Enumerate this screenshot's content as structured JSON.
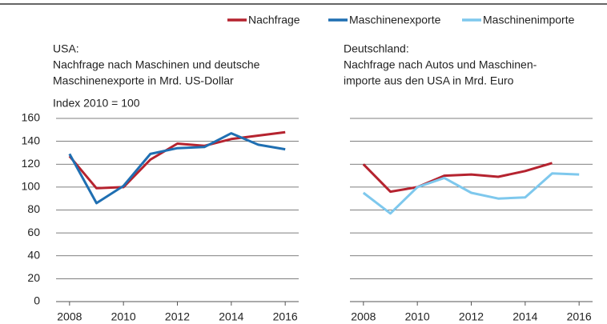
{
  "chart_data": [
    {
      "type": "line",
      "title": [
        "USA:",
        "Nachfrage nach Maschinen und deutsche",
        "Maschinenexporte in Mrd. US-Dollar"
      ],
      "y_label": "Index 2010 = 100",
      "x": [
        2008,
        2009,
        2010,
        2011,
        2012,
        2013,
        2014,
        2015,
        2016
      ],
      "series": [
        {
          "name": "Nachfrage",
          "color": "#b5232f",
          "values": [
            127,
            99,
            100,
            124,
            138,
            136,
            142,
            145,
            148
          ]
        },
        {
          "name": "Maschinenexporte",
          "color": "#1f6fb2",
          "values": [
            129,
            86,
            101,
            129,
            134,
            135,
            147,
            137,
            133
          ]
        }
      ],
      "xlim": [
        2007.5,
        2016.5
      ],
      "xticks": [
        2008,
        2010,
        2012,
        2014,
        2016
      ],
      "ylim": [
        0,
        160
      ],
      "yticks": [
        0,
        20,
        40,
        60,
        80,
        100,
        120,
        140,
        160
      ],
      "show_ytick_labels": true,
      "grid": true
    },
    {
      "type": "line",
      "title": [
        "Deutschland:",
        "Nachfrage nach Autos und Maschinen‑",
        "importe aus den USA in Mrd. Euro"
      ],
      "x": [
        2008,
        2009,
        2010,
        2011,
        2012,
        2013,
        2014,
        2015,
        2016
      ],
      "series": [
        {
          "name": "Nachfrage",
          "color": "#b5232f",
          "values": [
            120,
            96,
            100,
            110,
            111,
            109,
            114,
            121,
            null
          ]
        },
        {
          "name": "Maschinenimporte",
          "color": "#7ec8ed",
          "values": [
            95,
            77,
            100,
            108,
            95,
            90,
            91,
            112,
            111
          ]
        }
      ],
      "xlim": [
        2007.5,
        2016.5
      ],
      "xticks": [
        2008,
        2010,
        2012,
        2014,
        2016
      ],
      "ylim": [
        0,
        160
      ],
      "yticks": [
        0,
        20,
        40,
        60,
        80,
        100,
        120,
        140,
        160
      ],
      "show_ytick_labels": false,
      "grid": true
    }
  ]
}
